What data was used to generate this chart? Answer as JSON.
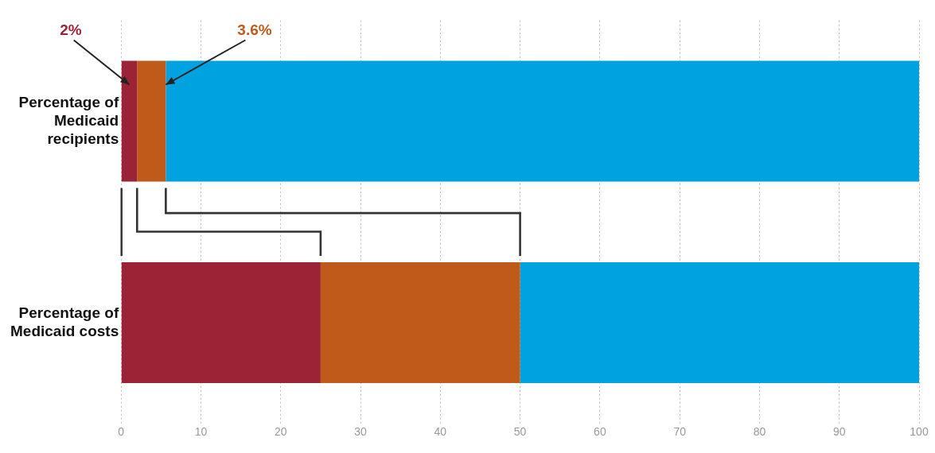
{
  "chart_data": {
    "type": "bar",
    "orientation": "horizontal",
    "stacked": true,
    "categories": [
      "Percentage of Medicaid recipients",
      "Percentage of Medicaid costs"
    ],
    "series": [
      {
        "color": "#9b2335",
        "values": [
          2,
          25
        ],
        "value_labels": [
          "2%",
          null
        ]
      },
      {
        "color": "#bf5a1a",
        "values": [
          3.6,
          25
        ],
        "value_labels": [
          "3.6%",
          null
        ]
      },
      {
        "color": "#00a3e0",
        "values": [
          94.4,
          50
        ]
      }
    ],
    "xlim": [
      0,
      100
    ],
    "xticks": [
      0,
      10,
      20,
      30,
      40,
      50,
      60,
      70,
      80,
      90,
      100
    ],
    "grid": "x",
    "legend": false
  }
}
